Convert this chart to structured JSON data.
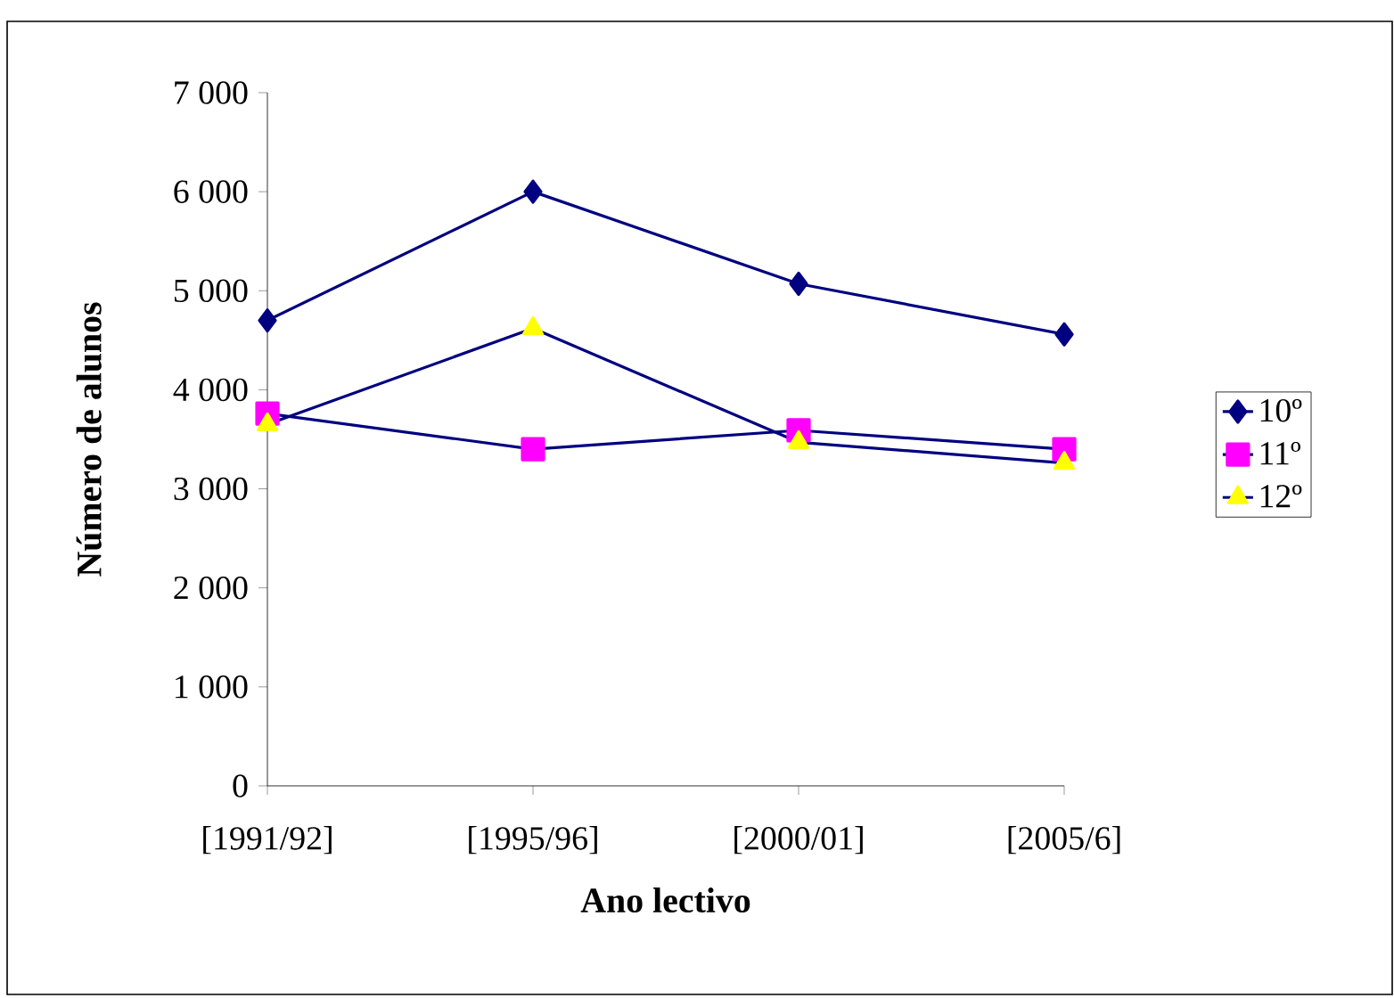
{
  "chart_data": {
    "type": "line",
    "xlabel": "Ano lectivo",
    "ylabel": "Número de alunos",
    "categories": [
      "[1991/92]",
      "[1995/96]",
      "[2000/01]",
      "[2005/6]"
    ],
    "series": [
      {
        "name": "10º",
        "color": "#000080",
        "marker": "diamond",
        "values": [
          4700,
          6000,
          5070,
          4560
        ]
      },
      {
        "name": "11º",
        "color": "#ff00ff",
        "marker": "square",
        "values": [
          3760,
          3400,
          3590,
          3400
        ]
      },
      {
        "name": "12º",
        "color": "#ffff00",
        "marker": "triangle",
        "values": [
          3650,
          4620,
          3470,
          3260
        ]
      }
    ],
    "ylim": [
      0,
      7000
    ],
    "yticks": [
      {
        "value": 0,
        "label": "0"
      },
      {
        "value": 1000,
        "label": "1 000"
      },
      {
        "value": 2000,
        "label": "2 000"
      },
      {
        "value": 3000,
        "label": "3 000"
      },
      {
        "value": 4000,
        "label": "4 000"
      },
      {
        "value": 5000,
        "label": "5 000"
      },
      {
        "value": 6000,
        "label": "6 000"
      },
      {
        "value": 7000,
        "label": "7 000"
      }
    ],
    "grid": false,
    "legend": "right"
  }
}
